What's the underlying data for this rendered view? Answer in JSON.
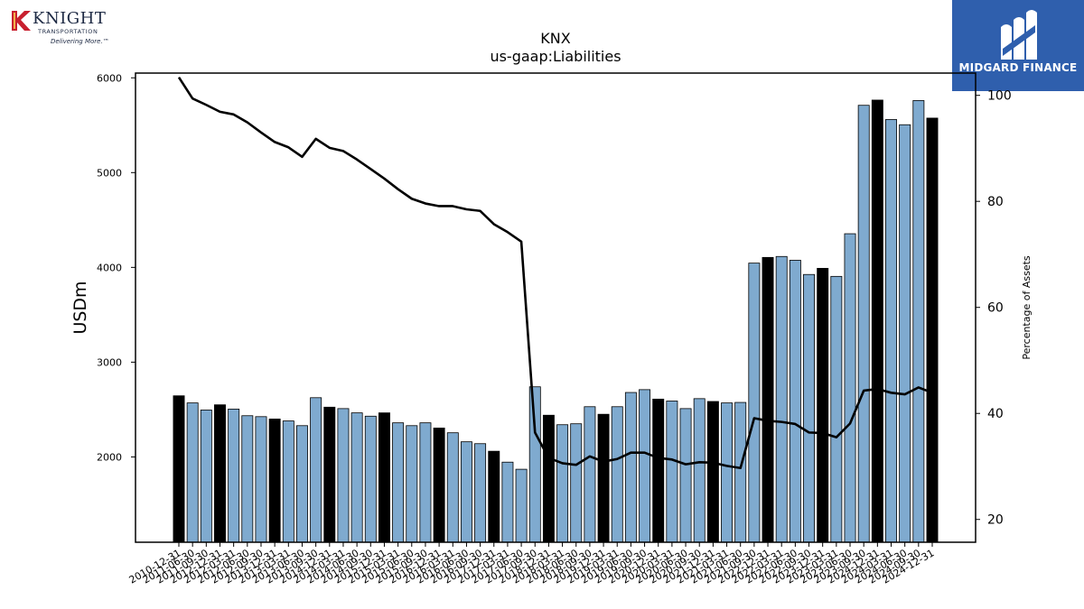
{
  "logos": {
    "left": {
      "name": "KNIGHT",
      "sub": "TRANSPORTATION",
      "tagline": "Delivering More.™"
    },
    "right": {
      "name": "MIDGARD FINANCE"
    }
  },
  "chart_data": {
    "type": "bar",
    "title": "KNX",
    "subtitle": "us-gaap:Liabilities",
    "ylabel": "USDm",
    "y2label": "Percentage of Assets",
    "ylim": [
      1100,
      6050
    ],
    "y2lim": [
      15.7,
      104.2
    ],
    "yticks": [
      2000,
      3000,
      4000,
      5000,
      6000
    ],
    "y2ticks": [
      20,
      40,
      60,
      80,
      100
    ],
    "colors": {
      "bar": "#7faacf",
      "bar_highlight": "#000000",
      "line": "#000000"
    },
    "tick_labels": [
      "2010-12-31",
      "2011-06-30",
      "2011-09-30",
      "2012-12-31",
      "2012-03-31",
      "2012-06-30",
      "2012-09-30",
      "2013-12-31",
      "2013-03-31",
      "2013-06-30",
      "2013-09-30",
      "2014-12-31",
      "2014-03-31",
      "2014-06-30",
      "2014-09-30",
      "2015-12-31",
      "2015-03-31",
      "2015-06-30",
      "2015-09-30",
      "2016-12-31",
      "2016-03-31",
      "2016-06-30",
      "2016-09-30",
      "2017-12-31",
      "2017-03-31",
      "2017-06-30",
      "2017-09-30",
      "2018-12-31",
      "2018-03-31",
      "2018-06-30",
      "2018-09-30",
      "2019-12-31",
      "2019-03-31",
      "2019-06-30",
      "2019-09-30",
      "2020-12-31",
      "2020-03-31",
      "2020-06-30",
      "2020-09-30",
      "2021-12-31",
      "2021-03-31",
      "2021-06-30",
      "2021-09-30",
      "2022-12-31",
      "2022-03-31",
      "2022-06-30",
      "2022-09-30",
      "2023-12-31",
      "2023-03-31",
      "2023-06-30",
      "2023-09-30",
      "2024-12-31",
      "2024-03-31",
      "2024-06-30",
      "2024-09-30",
      "2024-12-31"
    ],
    "values": [
      2645,
      2570,
      2495,
      2550,
      2505,
      2435,
      2425,
      2400,
      2380,
      2330,
      2625,
      2525,
      2510,
      2465,
      2430,
      2465,
      2360,
      2330,
      2360,
      2305,
      2255,
      2160,
      2140,
      2060,
      1945,
      1870,
      2740,
      2440,
      2340,
      2350,
      2530,
      2450,
      2530,
      2680,
      2710,
      2610,
      2590,
      2510,
      2615,
      2585,
      2570,
      2575,
      4045,
      4105,
      4115,
      4075,
      3925,
      3990,
      3905,
      4355,
      5710,
      5765,
      5560,
      5505,
      5760,
      5575
    ],
    "highlight": [
      true,
      false,
      false,
      true,
      false,
      false,
      false,
      true,
      false,
      false,
      false,
      true,
      false,
      false,
      false,
      true,
      false,
      false,
      false,
      true,
      false,
      false,
      false,
      true,
      false,
      false,
      false,
      true,
      false,
      false,
      false,
      true,
      false,
      false,
      false,
      true,
      false,
      false,
      false,
      true,
      false,
      false,
      false,
      true,
      false,
      false,
      false,
      true,
      false,
      false,
      false,
      true,
      false,
      false,
      false,
      true
    ],
    "pct_assets": [
      103.4,
      99.4,
      98.2,
      96.9,
      96.4,
      94.9,
      93.0,
      91.2,
      90.2,
      88.4,
      91.8,
      90.1,
      89.5,
      87.9,
      86.1,
      84.3,
      82.3,
      80.5,
      79.6,
      79.1,
      79.1,
      78.5,
      78.2,
      75.7,
      74.2,
      72.4,
      36.4,
      31.6,
      30.6,
      30.3,
      31.9,
      30.9,
      31.4,
      32.6,
      32.6,
      31.6,
      31.3,
      30.4,
      30.8,
      30.7,
      30.1,
      29.7,
      39.1,
      38.6,
      38.4,
      38.0,
      36.4,
      36.3,
      35.5,
      38.1,
      44.3,
      44.6,
      43.9,
      43.6,
      44.9,
      43.9
    ]
  }
}
